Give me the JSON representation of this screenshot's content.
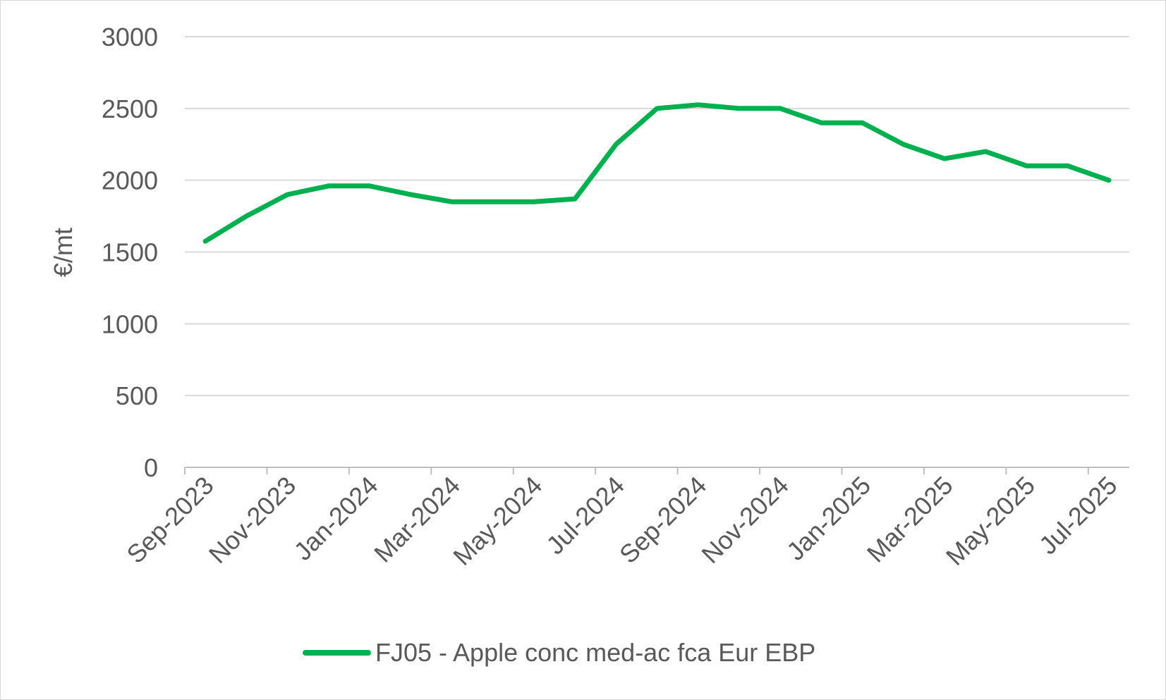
{
  "chart_data": {
    "type": "line",
    "ylabel": "€/mt",
    "ylim": [
      0,
      3000
    ],
    "yticks": [
      0,
      500,
      1000,
      1500,
      2000,
      2500,
      3000
    ],
    "xtick_labels": [
      "Sep-2023",
      "Nov-2023",
      "Jan-2024",
      "Mar-2024",
      "May-2024",
      "Jul-2024",
      "Sep-2024",
      "Nov-2024",
      "Jan-2025",
      "Mar-2025",
      "May-2025",
      "Jul-2025"
    ],
    "x": [
      "Sep-2023",
      "Oct-2023",
      "Nov-2023",
      "Dec-2023",
      "Jan-2024",
      "Feb-2024",
      "Mar-2024",
      "Apr-2024",
      "May-2024",
      "Jun-2024",
      "Jul-2024",
      "Aug-2024",
      "Sep-2024",
      "Oct-2024",
      "Nov-2024",
      "Dec-2024",
      "Jan-2025",
      "Feb-2025",
      "Mar-2025",
      "Apr-2025",
      "May-2025",
      "Jun-2025",
      "Jul-2025"
    ],
    "series": [
      {
        "name": "FJ05 - Apple conc med-ac fca Eur EBP",
        "color": "#00b050",
        "values": [
          1575,
          1750,
          1900,
          1960,
          1960,
          1900,
          1850,
          1850,
          1850,
          1870,
          2250,
          2500,
          2525,
          2500,
          2500,
          2400,
          2400,
          2250,
          2150,
          2200,
          2100,
          2100,
          2000
        ]
      }
    ],
    "grid": true,
    "legend_position": "bottom"
  }
}
